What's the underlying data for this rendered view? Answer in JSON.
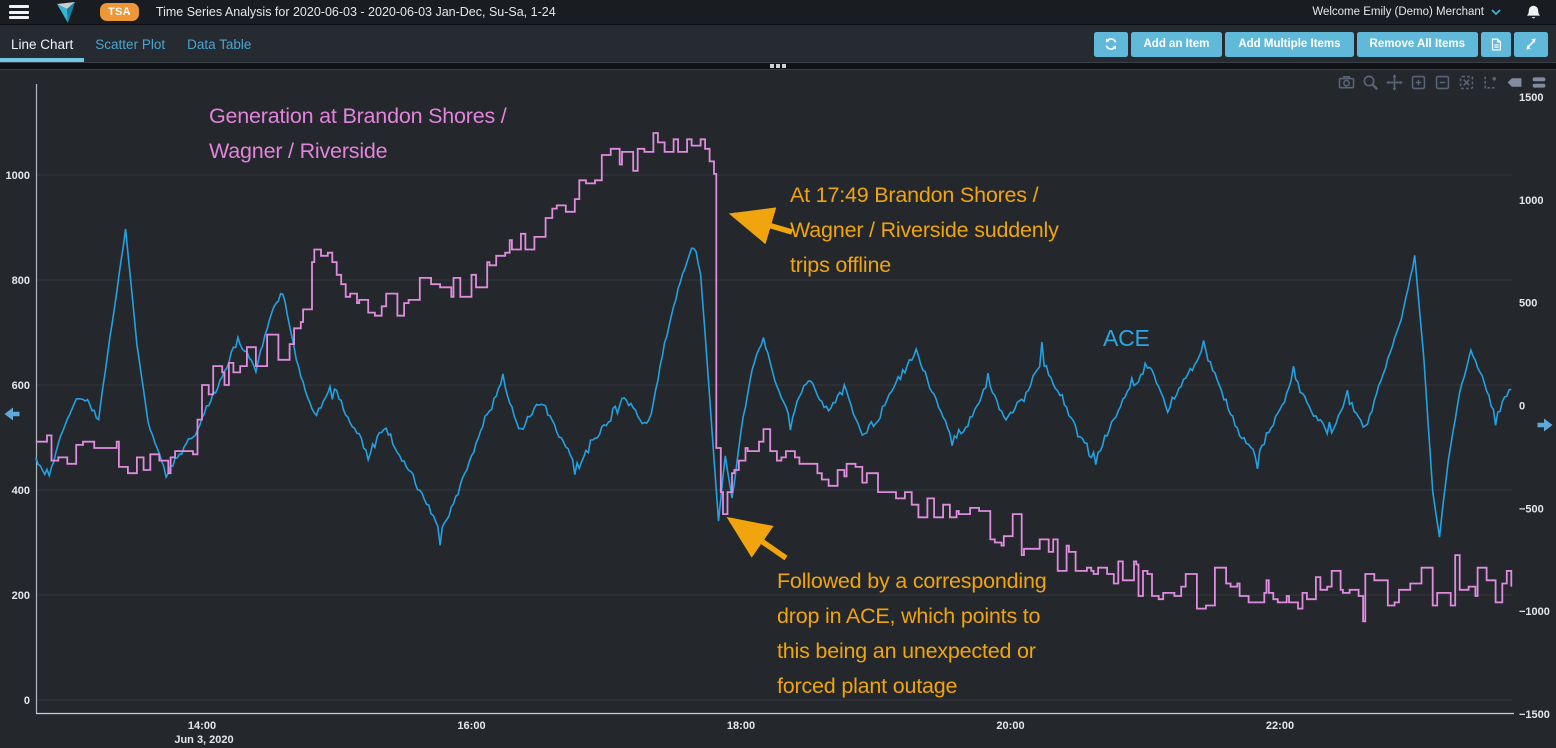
{
  "header": {
    "badge": "TSA",
    "title": "Time Series Analysis for 2020-06-03 - 2020-06-03 Jan-Dec, Su-Sa, 1-24",
    "user_menu": "Welcome Emily (Demo) Merchant"
  },
  "tabs": [
    {
      "label": "Line Chart",
      "active": true
    },
    {
      "label": "Scatter Plot",
      "active": false
    },
    {
      "label": "Data Table",
      "active": false
    }
  ],
  "toolbar": {
    "add_item": "Add an Item",
    "add_multiple": "Add Multiple Items",
    "remove_all": "Remove All Items"
  },
  "colors": {
    "button_blue": "#61b9da",
    "tab_underline": "#71c5e6",
    "generation_line": "#df8cdf",
    "ace_line": "#22a2e2",
    "annotation_orange": "#f0a40e",
    "chart_background": "#24272c",
    "gridline": "#35383d"
  },
  "chart_data": {
    "type": "line",
    "x_axis": {
      "tick_labels": [
        "14:00",
        "16:00",
        "18:00",
        "20:00",
        "22:00"
      ],
      "tick_minutes": [
        840,
        960,
        1080,
        1200,
        1320
      ],
      "date_label": "Jun 3, 2020",
      "start": "12:46",
      "end": "23:43"
    },
    "y_axis_left": {
      "tick_labels": [
        "0",
        "200",
        "400",
        "600",
        "800",
        "1000"
      ],
      "tick_values": [
        0,
        200,
        400,
        600,
        800,
        1000
      ],
      "range": [
        0,
        1160
      ]
    },
    "y_axis_right": {
      "tick_labels": [
        "1500",
        "1000",
        "500",
        "0",
        "−500",
        "−1000",
        "−1500"
      ],
      "tick_values": [
        1500,
        1000,
        500,
        0,
        -500,
        -1000,
        -1500
      ],
      "range": [
        -1500,
        1550
      ]
    },
    "series": [
      {
        "name": "Generation at Brandon Shores / Wagner / Riverside",
        "axis": "left",
        "color": "#df8cdf",
        "shape": "step",
        "anchors": [
          [
            "12:46",
            470
          ],
          [
            "13:00",
            480
          ],
          [
            "13:12",
            492
          ],
          [
            "13:22",
            462
          ],
          [
            "13:34",
            452
          ],
          [
            "13:46",
            448
          ],
          [
            "13:56",
            470
          ],
          [
            "14:00",
            598
          ],
          [
            "14:10",
            622
          ],
          [
            "14:22",
            648
          ],
          [
            "14:34",
            668
          ],
          [
            "14:44",
            720
          ],
          [
            "14:50",
            858
          ],
          [
            "14:56",
            842
          ],
          [
            "15:02",
            806
          ],
          [
            "15:10",
            768
          ],
          [
            "15:20",
            742
          ],
          [
            "15:32",
            766
          ],
          [
            "15:42",
            790
          ],
          [
            "15:52",
            772
          ],
          [
            "16:00",
            788
          ],
          [
            "16:08",
            820
          ],
          [
            "16:18",
            856
          ],
          [
            "16:28",
            886
          ],
          [
            "16:38",
            932
          ],
          [
            "16:48",
            972
          ],
          [
            "16:58",
            1012
          ],
          [
            "17:06",
            1046
          ],
          [
            "17:14",
            1022
          ],
          [
            "17:22",
            1062
          ],
          [
            "17:30",
            1040
          ],
          [
            "17:38",
            1052
          ],
          [
            "17:44",
            1046
          ],
          [
            "17:48",
            1004
          ],
          [
            "17:49",
            478
          ],
          [
            "17:52",
            356
          ],
          [
            "17:56",
            432
          ],
          [
            "18:02",
            472
          ],
          [
            "18:10",
            482
          ],
          [
            "18:18",
            470
          ],
          [
            "18:26",
            452
          ],
          [
            "18:36",
            436
          ],
          [
            "18:46",
            424
          ],
          [
            "18:56",
            412
          ],
          [
            "19:06",
            396
          ],
          [
            "19:16",
            382
          ],
          [
            "19:26",
            366
          ],
          [
            "19:36",
            348
          ],
          [
            "19:46",
            330
          ],
          [
            "19:56",
            318
          ],
          [
            "20:06",
            302
          ],
          [
            "20:16",
            288
          ],
          [
            "20:26",
            272
          ],
          [
            "20:36",
            252
          ],
          [
            "20:46",
            238
          ],
          [
            "20:56",
            228
          ],
          [
            "21:06",
            214
          ],
          [
            "21:18",
            206
          ],
          [
            "21:30",
            202
          ],
          [
            "21:42",
            208
          ],
          [
            "21:54",
            212
          ],
          [
            "22:04",
            168
          ],
          [
            "22:10",
            196
          ],
          [
            "22:18",
            212
          ],
          [
            "22:28",
            208
          ],
          [
            "22:38",
            214
          ],
          [
            "22:48",
            208
          ],
          [
            "22:58",
            222
          ],
          [
            "23:08",
            216
          ],
          [
            "23:18",
            212
          ],
          [
            "23:28",
            218
          ],
          [
            "23:36",
            222
          ],
          [
            "23:43",
            232
          ]
        ]
      },
      {
        "name": "ACE",
        "axis": "right",
        "color": "#22a2e2",
        "shape": "jagged",
        "anchors": [
          [
            "12:46",
            -280
          ],
          [
            "12:52",
            -340
          ],
          [
            "12:58",
            -120
          ],
          [
            "13:06",
            60
          ],
          [
            "13:14",
            -60
          ],
          [
            "13:20",
            400
          ],
          [
            "13:26",
            860
          ],
          [
            "13:31",
            300
          ],
          [
            "13:36",
            -80
          ],
          [
            "13:44",
            -340
          ],
          [
            "13:52",
            -220
          ],
          [
            "14:00",
            -60
          ],
          [
            "14:08",
            120
          ],
          [
            "14:16",
            320
          ],
          [
            "14:24",
            180
          ],
          [
            "14:32",
            480
          ],
          [
            "14:36",
            560
          ],
          [
            "14:42",
            220
          ],
          [
            "14:50",
            -60
          ],
          [
            "14:58",
            120
          ],
          [
            "15:06",
            -80
          ],
          [
            "15:14",
            -240
          ],
          [
            "15:22",
            -120
          ],
          [
            "15:30",
            -280
          ],
          [
            "15:38",
            -420
          ],
          [
            "15:46",
            -620
          ],
          [
            "15:52",
            -480
          ],
          [
            "15:58",
            -300
          ],
          [
            "16:06",
            -60
          ],
          [
            "16:14",
            120
          ],
          [
            "16:22",
            -140
          ],
          [
            "16:30",
            40
          ],
          [
            "16:38",
            -120
          ],
          [
            "16:46",
            -280
          ],
          [
            "16:54",
            -180
          ],
          [
            "17:02",
            -60
          ],
          [
            "17:10",
            40
          ],
          [
            "17:16",
            -100
          ],
          [
            "17:20",
            -40
          ],
          [
            "17:26",
            300
          ],
          [
            "17:32",
            560
          ],
          [
            "17:36",
            700
          ],
          [
            "17:39",
            800
          ],
          [
            "17:42",
            640
          ],
          [
            "17:45",
            200
          ],
          [
            "17:48",
            -260
          ],
          [
            "17:50",
            -560
          ],
          [
            "17:53",
            -240
          ],
          [
            "17:56",
            -460
          ],
          [
            "18:00",
            -120
          ],
          [
            "18:05",
            180
          ],
          [
            "18:10",
            320
          ],
          [
            "18:16",
            80
          ],
          [
            "18:22",
            -80
          ],
          [
            "18:30",
            140
          ],
          [
            "18:38",
            -40
          ],
          [
            "18:46",
            80
          ],
          [
            "18:54",
            -160
          ],
          [
            "19:02",
            -40
          ],
          [
            "19:10",
            140
          ],
          [
            "19:18",
            260
          ],
          [
            "19:26",
            40
          ],
          [
            "19:34",
            -160
          ],
          [
            "19:42",
            -60
          ],
          [
            "19:50",
            120
          ],
          [
            "19:58",
            -80
          ],
          [
            "20:06",
            40
          ],
          [
            "20:14",
            220
          ],
          [
            "20:22",
            60
          ],
          [
            "20:30",
            -140
          ],
          [
            "20:38",
            -260
          ],
          [
            "20:46",
            -60
          ],
          [
            "20:54",
            120
          ],
          [
            "21:02",
            200
          ],
          [
            "21:10",
            -20
          ],
          [
            "21:18",
            120
          ],
          [
            "21:26",
            280
          ],
          [
            "21:34",
            60
          ],
          [
            "21:42",
            -140
          ],
          [
            "21:50",
            -240
          ],
          [
            "21:58",
            -60
          ],
          [
            "22:06",
            140
          ],
          [
            "22:14",
            -40
          ],
          [
            "22:22",
            -160
          ],
          [
            "22:30",
            40
          ],
          [
            "22:38",
            -120
          ],
          [
            "22:46",
            160
          ],
          [
            "22:54",
            420
          ],
          [
            "23:00",
            720
          ],
          [
            "23:04",
            240
          ],
          [
            "23:08",
            -420
          ],
          [
            "23:11",
            -640
          ],
          [
            "23:15",
            -260
          ],
          [
            "23:20",
            60
          ],
          [
            "23:25",
            280
          ],
          [
            "23:30",
            140
          ],
          [
            "23:36",
            -60
          ],
          [
            "23:43",
            80
          ]
        ]
      }
    ],
    "annotations": [
      {
        "id": "generation",
        "color": "#e283dc",
        "lines": [
          "Generation at Brandon Shores /",
          "Wagner / Riverside"
        ]
      },
      {
        "id": "trip",
        "color": "#f0a40e",
        "lines": [
          "At 17:49 Brandon Shores /",
          "Wagner / Riverside suddenly",
          "trips offline"
        ]
      },
      {
        "id": "ace",
        "color": "#2ba6e2",
        "lines": [
          "ACE"
        ]
      },
      {
        "id": "outage",
        "color": "#f0a40e",
        "lines": [
          "Followed by a corresponding",
          "drop in ACE, which points to",
          "this being an unexpected or",
          "forced plant outage"
        ]
      }
    ]
  }
}
